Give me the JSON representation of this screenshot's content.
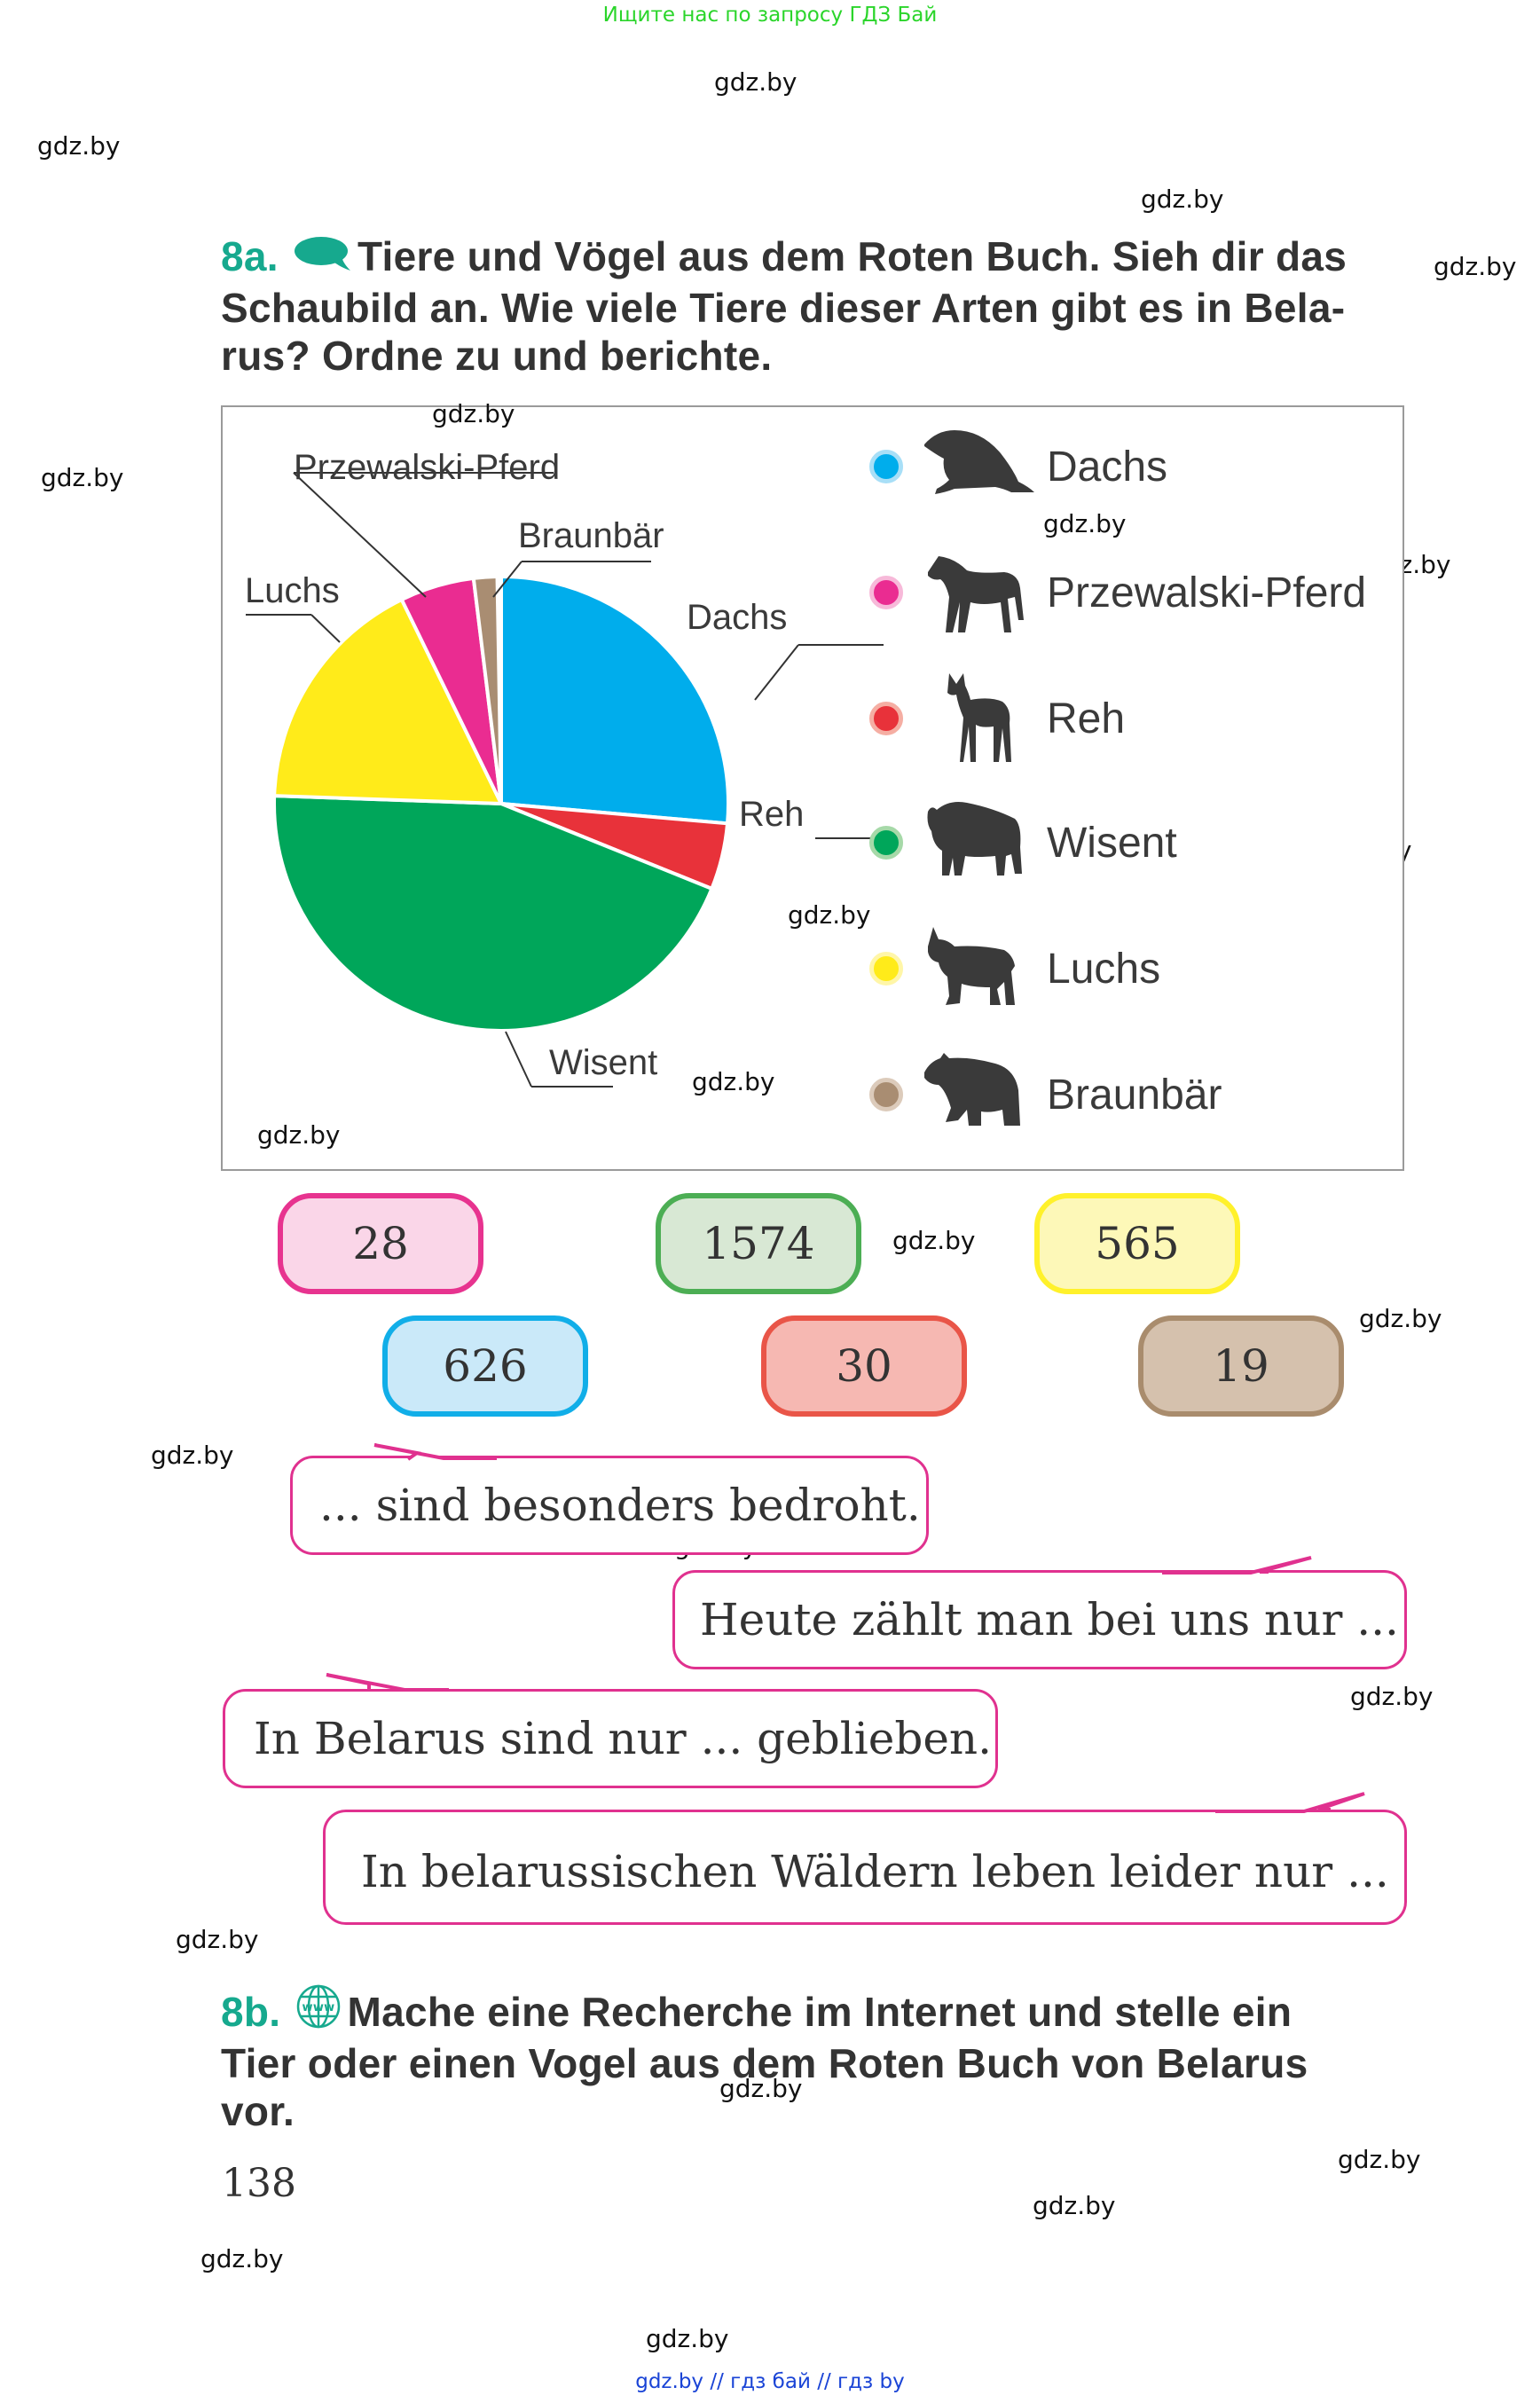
{
  "header_note": "Ищите нас по запросу ГДЗ Бай",
  "footer_note": "gdz.by  //  гдз бай  //  гдз by",
  "watermark": "gdz.by",
  "task_8a": {
    "number": "8a.",
    "icon": "speech-bubble-icon",
    "lines": [
      "Tiere und Vögel aus dem Roten Buch. Sieh dir das",
      "Schaubild an. Wie viele Tiere dieser Arten gibt es in Bela-",
      "rus? Ordne zu und berichte."
    ]
  },
  "chart_data": {
    "type": "pie",
    "title": "",
    "slices": [
      {
        "label": "Dachs",
        "color": "#00adec",
        "start_deg": 0,
        "end_deg": 95
      },
      {
        "label": "Reh",
        "color": "#e8323a",
        "start_deg": 95,
        "end_deg": 112
      },
      {
        "label": "Wisent",
        "color": "#00a65a",
        "start_deg": 112,
        "end_deg": 272
      },
      {
        "label": "Luchs",
        "color": "#ffeb1a",
        "start_deg": 272,
        "end_deg": 334
      },
      {
        "label": "Przewalski-Pferd",
        "color": "#ea2c91",
        "start_deg": 334,
        "end_deg": 353
      },
      {
        "label": "Braunbär",
        "color": "#a98d72",
        "start_deg": 353,
        "end_deg": 359
      }
    ],
    "categories": [
      "Dachs",
      "Przewalski-Pferd",
      "Reh",
      "Wisent",
      "Luchs",
      "Braunbär"
    ],
    "legend_position": "right",
    "value_options": [
      28,
      1574,
      565,
      626,
      30,
      19
    ]
  },
  "pie_labels": {
    "przewalski": "Przewalski-Pferd",
    "braunbaer": "Braunbär",
    "luchs": "Luchs",
    "dachs": "Dachs",
    "reh": "Reh",
    "wisent": "Wisent"
  },
  "legend": [
    {
      "label": "Dachs",
      "color": "#00adec",
      "ring": "#a8dff7",
      "icon": "badger-icon"
    },
    {
      "label": "Przewalski-Pferd",
      "color": "#ea2c91",
      "ring": "#f7b9d9",
      "icon": "horse-icon"
    },
    {
      "label": "Reh",
      "color": "#e8323a",
      "ring": "#f5aea3",
      "icon": "deer-icon"
    },
    {
      "label": "Wisent",
      "color": "#00a65a",
      "ring": "#a6d9a8",
      "icon": "bison-icon"
    },
    {
      "label": "Luchs",
      "color": "#ffeb1a",
      "ring": "#fff6a8",
      "icon": "lynx-icon"
    },
    {
      "label": "Braunbär",
      "color": "#a98d72",
      "ring": "#dccbbb",
      "icon": "bear-icon"
    }
  ],
  "number_boxes": [
    {
      "value": "28",
      "border": "#e7338f",
      "fill": "#fad6e8"
    },
    {
      "value": "1574",
      "border": "#4cae54",
      "fill": "#d8e8d4"
    },
    {
      "value": "565",
      "border": "#fff12b",
      "fill": "#fdf8b8"
    },
    {
      "value": "626",
      "border": "#11aee8",
      "fill": "#cae9f9"
    },
    {
      "value": "30",
      "border": "#e95548",
      "fill": "#f6b8b2"
    },
    {
      "value": "19",
      "border": "#a98c6d",
      "fill": "#d5c1ad"
    }
  ],
  "bubbles": [
    "... sind besonders bedroht.",
    "Heute zählt man bei uns nur ...",
    "In Belarus sind nur ... geblieben.",
    "In belarussischen Wäldern leben leider nur ..."
  ],
  "task_8b": {
    "number": "8b.",
    "icon": "globe-www-icon",
    "lines": [
      "Mache eine Recherche im Internet und stelle ein",
      "Tier oder einen Vogel aus dem Roten Buch von Belarus",
      "vor."
    ]
  },
  "page_number": "138",
  "colors": {
    "accent_teal": "#16a98e",
    "bubble_border": "#e0318f",
    "text": "#333333"
  }
}
